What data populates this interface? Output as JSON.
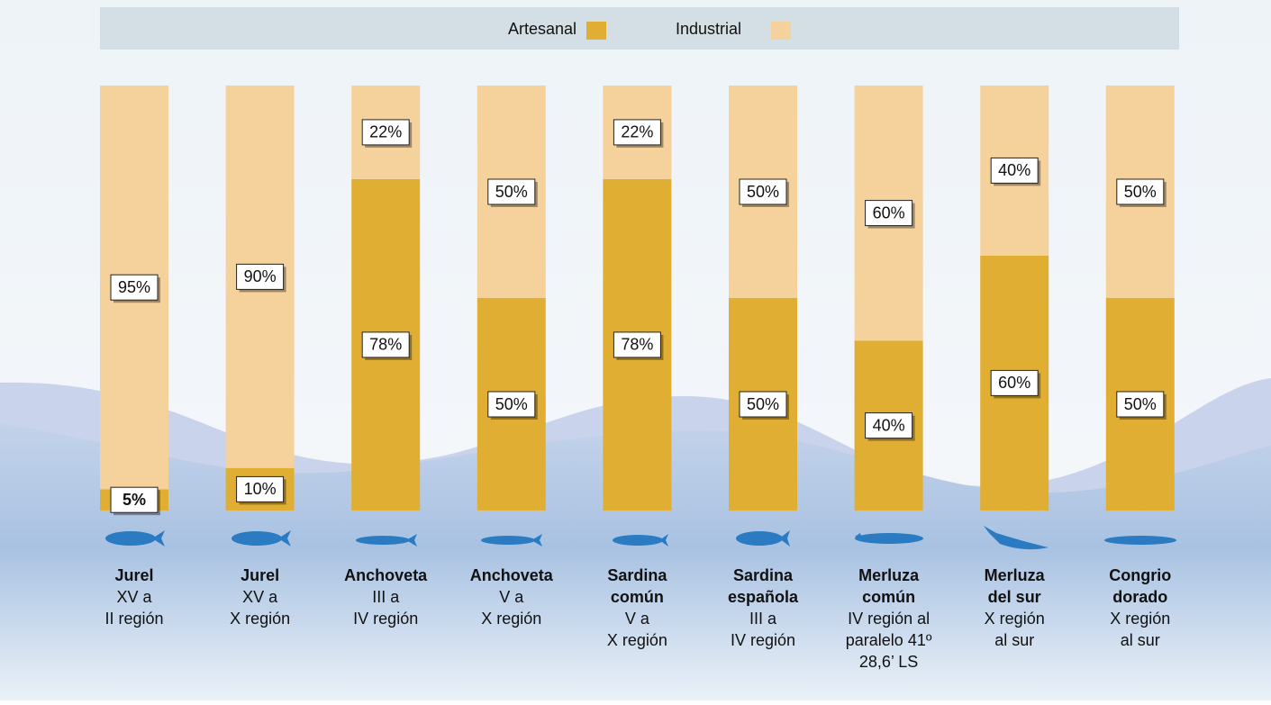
{
  "chart_data": {
    "type": "stacked_bar",
    "categories": [
      {
        "name": [
          "Jurel"
        ],
        "region": [
          "XV a",
          "II región"
        ]
      },
      {
        "name": [
          "Jurel"
        ],
        "region": [
          "XV a",
          "X región"
        ]
      },
      {
        "name": [
          "Anchoveta"
        ],
        "region": [
          "III a",
          "IV región"
        ]
      },
      {
        "name": [
          "Anchoveta"
        ],
        "region": [
          "V a",
          "X región"
        ]
      },
      {
        "name": [
          "Sardina",
          "común"
        ],
        "region": [
          "V a",
          "X región"
        ]
      },
      {
        "name": [
          "Sardina",
          "española"
        ],
        "region": [
          "III a",
          "IV región"
        ]
      },
      {
        "name": [
          "Merluza",
          "común"
        ],
        "region": [
          "IV región al",
          "paralelo 41º",
          "28,6’ LS"
        ]
      },
      {
        "name": [
          "Merluza",
          "del sur"
        ],
        "region": [
          "X región",
          "al sur"
        ]
      },
      {
        "name": [
          "Congrio",
          "dorado"
        ],
        "region": [
          "X región",
          "al sur"
        ]
      }
    ],
    "series": [
      {
        "name": "Artesanal",
        "color": "#e0ae32",
        "values": [
          5,
          10,
          78,
          50,
          78,
          50,
          40,
          60,
          50
        ],
        "value_labels": [
          "5%",
          "10%",
          "78%",
          "50%",
          "78%",
          "50%",
          "40%",
          "60%",
          "50%"
        ]
      },
      {
        "name": "Industrial",
        "color": "#f5d29c",
        "values": [
          95,
          90,
          22,
          50,
          22,
          50,
          60,
          40,
          50
        ],
        "value_labels": [
          "95%",
          "90%",
          "22%",
          "50%",
          "22%",
          "50%",
          "60%",
          "40%",
          "50%"
        ]
      }
    ],
    "ylim": [
      0,
      100
    ]
  }
}
